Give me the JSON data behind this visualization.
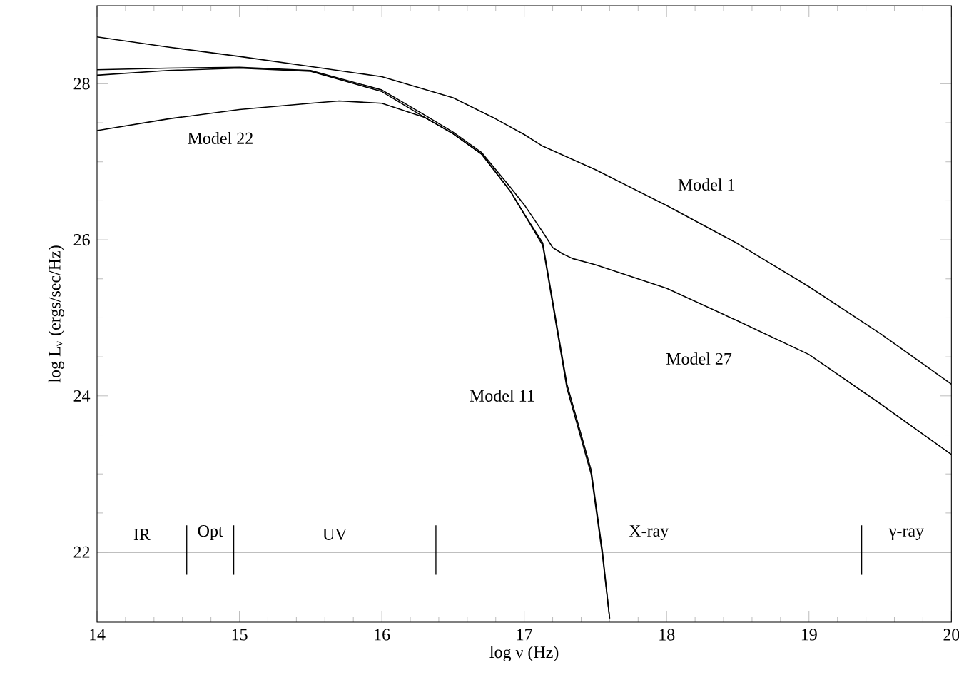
{
  "chart_data": {
    "type": "line",
    "xlabel": "log ν (Hz)",
    "ylabel": "log L$_{ν}$ (ergs/sec/Hz)",
    "xlim": [
      14,
      20
    ],
    "ylim": [
      21.1,
      29
    ],
    "xticks": [
      14,
      15,
      16,
      17,
      18,
      19,
      20
    ],
    "yticks": [
      22,
      24,
      26,
      28
    ],
    "grid": false,
    "legend": false,
    "marker": "none",
    "line_style": "solid",
    "series": [
      {
        "name": "Model 1",
        "color": "#000000",
        "x": [
          14,
          14.5,
          15,
          15.5,
          16,
          16.5,
          16.8,
          17,
          17.13,
          17.5,
          18,
          18.5,
          19,
          19.5,
          20
        ],
        "values": [
          28.6,
          28.47,
          28.35,
          28.22,
          28.09,
          27.82,
          27.55,
          27.35,
          27.2,
          26.9,
          26.44,
          25.95,
          25.4,
          24.8,
          24.15
        ]
      },
      {
        "name": "Model 11",
        "color": "#000000",
        "x": [
          14,
          14.5,
          15,
          15.5,
          16,
          16.3,
          16.5,
          16.7,
          16.9,
          17,
          17.13,
          17.3,
          17.47,
          17.55,
          17.6
        ],
        "values": [
          28.11,
          28.17,
          28.2,
          28.16,
          27.9,
          27.57,
          27.36,
          27.1,
          26.63,
          26.33,
          25.96,
          24.15,
          23.05,
          22,
          21.15
        ]
      },
      {
        "name": "Model 22",
        "color": "#000000",
        "x": [
          14,
          14.5,
          15,
          15.5,
          15.7,
          16,
          16.3,
          16.5,
          16.7,
          16.9,
          17,
          17.13,
          17.3,
          17.47,
          17.55,
          17.6
        ],
        "values": [
          27.4,
          27.55,
          27.67,
          27.75,
          27.78,
          27.75,
          27.57,
          27.36,
          27.1,
          26.63,
          26.33,
          25.93,
          24.1,
          23,
          21.95,
          21.15
        ]
      },
      {
        "name": "Model 27",
        "color": "#000000",
        "x": [
          14,
          14.5,
          15,
          15.5,
          16,
          16.3,
          16.5,
          16.7,
          16.9,
          17,
          17.13,
          17.2,
          17.27,
          17.34,
          17.5,
          18,
          18.5,
          19,
          19.5,
          20
        ],
        "values": [
          28.18,
          28.2,
          28.21,
          28.17,
          27.92,
          27.6,
          27.38,
          27.12,
          26.68,
          26.45,
          26.1,
          25.9,
          25.82,
          25.76,
          25.68,
          25.38,
          24.96,
          24.53,
          23.9,
          23.25
        ]
      }
    ],
    "ref_lines": [
      {
        "axis": "y",
        "value": 22,
        "color": "#000000"
      },
      {
        "axis": "x",
        "value": 14.63,
        "color": "#000000"
      },
      {
        "axis": "x",
        "value": 14.96,
        "color": "#000000"
      },
      {
        "axis": "x",
        "value": 16.38,
        "color": "#000000"
      },
      {
        "axis": "x",
        "value": 19.37,
        "color": "#000000"
      }
    ],
    "annotations": [
      "IR",
      "Opt",
      "UV",
      "X-ray",
      "γ-ray"
    ]
  }
}
